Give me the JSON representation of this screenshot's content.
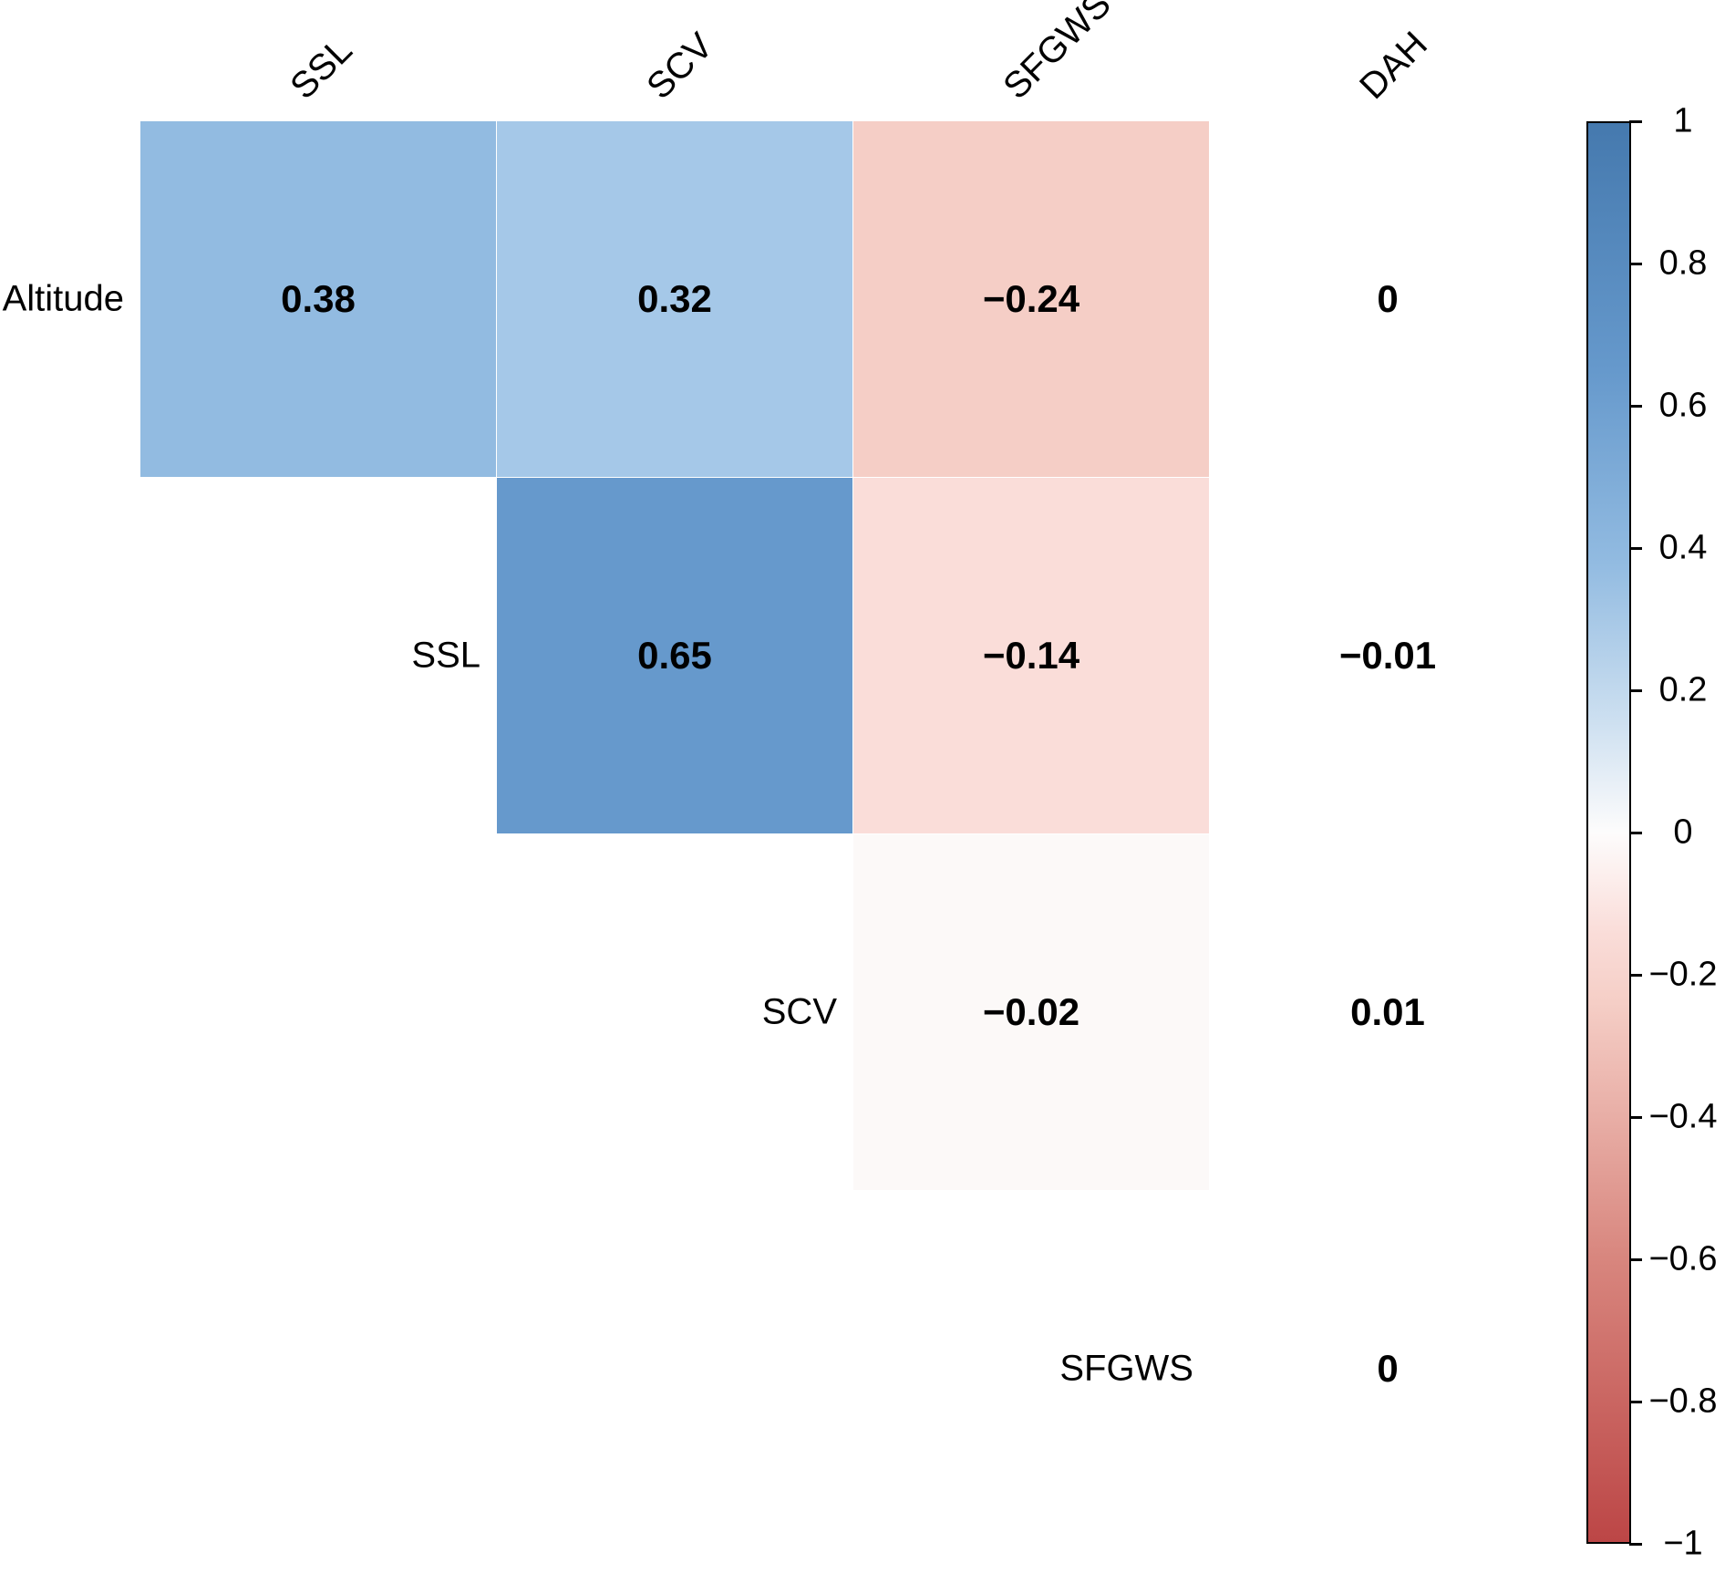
{
  "chart_data": {
    "type": "heatmap",
    "subtype": "correlation-matrix-upper-triangle",
    "variables": [
      "Altitude",
      "SSL",
      "SCV",
      "SFGWS",
      "DAH"
    ],
    "col_labels": [
      "SSL",
      "SCV",
      "SFGWS",
      "DAH"
    ],
    "row_labels": [
      "Altitude",
      "SSL",
      "SCV",
      "SFGWS"
    ],
    "grid": "off",
    "legend_position": "right",
    "cells": [
      {
        "row": "Altitude",
        "col": "SSL",
        "value": 0.38,
        "display": "0.38",
        "color": "#92BBE1"
      },
      {
        "row": "Altitude",
        "col": "SCV",
        "value": 0.32,
        "display": "0.32",
        "color": "#A5C8E8"
      },
      {
        "row": "Altitude",
        "col": "SFGWS",
        "value": -0.24,
        "display": "−0.24",
        "color": "#F5CEC6"
      },
      {
        "row": "Altitude",
        "col": "DAH",
        "value": 0,
        "display": "0",
        "color": "#FFFFFF"
      },
      {
        "row": "SSL",
        "col": "SCV",
        "value": 0.65,
        "display": "0.65",
        "color": "#6699CC"
      },
      {
        "row": "SSL",
        "col": "SFGWS",
        "value": -0.14,
        "display": "−0.14",
        "color": "#FADDD9"
      },
      {
        "row": "SSL",
        "col": "DAH",
        "value": -0.01,
        "display": "−0.01",
        "color": "#FFFFFF"
      },
      {
        "row": "SCV",
        "col": "SFGWS",
        "value": -0.02,
        "display": "−0.02",
        "color": "#FCF9F8"
      },
      {
        "row": "SCV",
        "col": "DAH",
        "value": 0.01,
        "display": "0.01",
        "color": "#FFFFFF"
      },
      {
        "row": "SFGWS",
        "col": "DAH",
        "value": 0,
        "display": "0",
        "color": "#FFFFFF"
      }
    ],
    "colorbar": {
      "min": -1,
      "max": 1,
      "tick_labels": [
        "1",
        "0.8",
        "0.6",
        "0.4",
        "0.2",
        "0",
        "−0.2",
        "−0.4",
        "−0.6",
        "−0.8",
        "−1"
      ],
      "gradient_stops": [
        {
          "pos": 0.0,
          "color": "#4579AE"
        },
        {
          "pos": 0.175,
          "color": "#6699CC"
        },
        {
          "pos": 0.31,
          "color": "#92BBE1"
        },
        {
          "pos": 0.42,
          "color": "#CCDFF0"
        },
        {
          "pos": 0.5,
          "color": "#FDFCFC"
        },
        {
          "pos": 0.57,
          "color": "#FADDD9"
        },
        {
          "pos": 0.62,
          "color": "#F5CEC6"
        },
        {
          "pos": 0.8,
          "color": "#D8867E"
        },
        {
          "pos": 1.0,
          "color": "#BC4646"
        }
      ],
      "positive_color": "#4579AE",
      "zero_color": "#FFFFFF",
      "negative_color": "#BC4646"
    },
    "text_color": "#000000"
  }
}
